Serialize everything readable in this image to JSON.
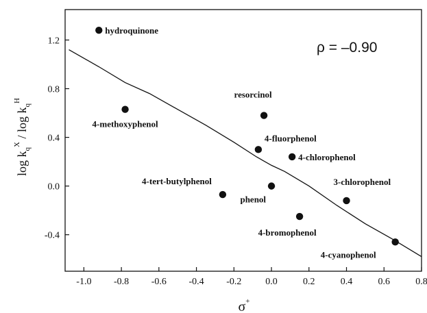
{
  "chart_data": {
    "type": "scatter",
    "xlabel": "σ",
    "xlabel_superscript": "+",
    "ylabel": {
      "prefix": "log k",
      "sub1": "q",
      "sup1": "X",
      "divider": " / log k",
      "sub2": "q",
      "sup2": "H"
    },
    "xlim": [
      -1.1,
      0.8
    ],
    "ylim": [
      -0.7,
      1.45
    ],
    "xticks": [
      -1.0,
      -0.8,
      -0.6,
      -0.4,
      -0.2,
      0.0,
      0.2,
      0.4,
      0.6,
      0.8
    ],
    "xtick_labels": [
      "-1.0",
      "-0.8",
      "-0.6",
      "-0.4",
      "-0.2",
      "0.0",
      "0.2",
      "0.4",
      "0.6",
      "0.8"
    ],
    "yticks": [
      -0.4,
      0.0,
      0.4,
      0.8,
      1.2
    ],
    "ytick_labels": [
      "-0.4",
      "0.0",
      "0.4",
      "0.8",
      "1.2"
    ],
    "annotation": "ρ = –0.90",
    "annotation_position": "top-right",
    "grid": false,
    "legend": false,
    "points": [
      {
        "label": "hydroquinone",
        "x": -0.92,
        "y": 1.28
      },
      {
        "label": "4-methoxyphenol",
        "x": -0.78,
        "y": 0.63
      },
      {
        "label": "resorcinol",
        "x": -0.04,
        "y": 0.58
      },
      {
        "label": "4-fluorphenol",
        "x": -0.07,
        "y": 0.3
      },
      {
        "label": "4-chlorophenol",
        "x": 0.11,
        "y": 0.24
      },
      {
        "label": "4-tert-butylphenol",
        "x": -0.26,
        "y": -0.07
      },
      {
        "label": "phenol",
        "x": 0.0,
        "y": 0.0
      },
      {
        "label": "3-chlorophenol",
        "x": 0.4,
        "y": -0.12
      },
      {
        "label": "4-bromophenol",
        "x": 0.15,
        "y": -0.25
      },
      {
        "label": "4-cyanophenol",
        "x": 0.66,
        "y": -0.46
      }
    ],
    "fit_line": {
      "x": [
        -1.08,
        -0.92,
        -0.78,
        -0.65,
        -0.5,
        -0.35,
        -0.2,
        -0.08,
        0.0,
        0.07,
        0.2,
        0.35,
        0.5,
        0.65,
        0.8
      ],
      "y": [
        1.12,
        0.98,
        0.85,
        0.76,
        0.63,
        0.5,
        0.36,
        0.24,
        0.17,
        0.12,
        0.0,
        -0.16,
        -0.31,
        -0.44,
        -0.58
      ]
    }
  }
}
